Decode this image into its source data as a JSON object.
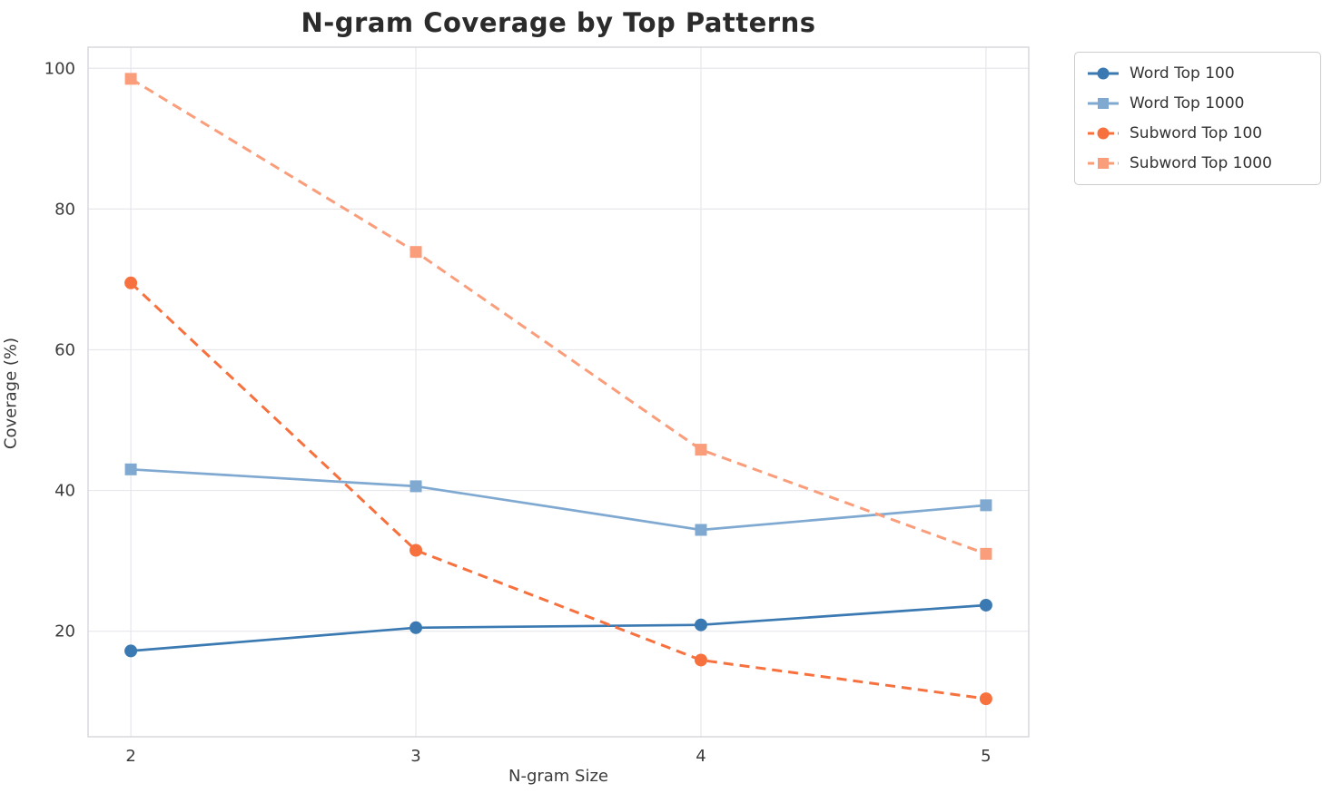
{
  "chart_data": {
    "type": "line",
    "title": "N-gram Coverage by Top Patterns",
    "xlabel": "N-gram Size",
    "ylabel": "Coverage (%)",
    "x": [
      2,
      3,
      4,
      5
    ],
    "xticks": [
      2,
      3,
      4,
      5
    ],
    "yticks": [
      20,
      40,
      60,
      80,
      100
    ],
    "xlim": [
      1.85,
      5.15
    ],
    "ylim": [
      5,
      103
    ],
    "grid": true,
    "legend_position": "outside-top-right",
    "series": [
      {
        "name": "Word Top 100",
        "values": [
          17.2,
          20.5,
          20.9,
          23.7
        ],
        "color": "#3a79b1",
        "dash": "solid",
        "marker": "circle"
      },
      {
        "name": "Word Top 1000",
        "values": [
          43.0,
          40.6,
          34.4,
          37.9
        ],
        "color": "#7fa9d1",
        "dash": "solid",
        "marker": "square"
      },
      {
        "name": "Subword Top 100",
        "values": [
          69.5,
          31.5,
          15.9,
          10.4
        ],
        "color": "#f7713e",
        "dash": "dashed",
        "marker": "circle"
      },
      {
        "name": "Subword Top 1000",
        "values": [
          98.5,
          73.9,
          45.8,
          31.0
        ],
        "color": "#fa9d7b",
        "dash": "dashed",
        "marker": "square"
      }
    ],
    "colors": {
      "grid": "#e7e7ec",
      "frame": "#d3d3d9",
      "tick_text": "#3b3b3b"
    }
  }
}
